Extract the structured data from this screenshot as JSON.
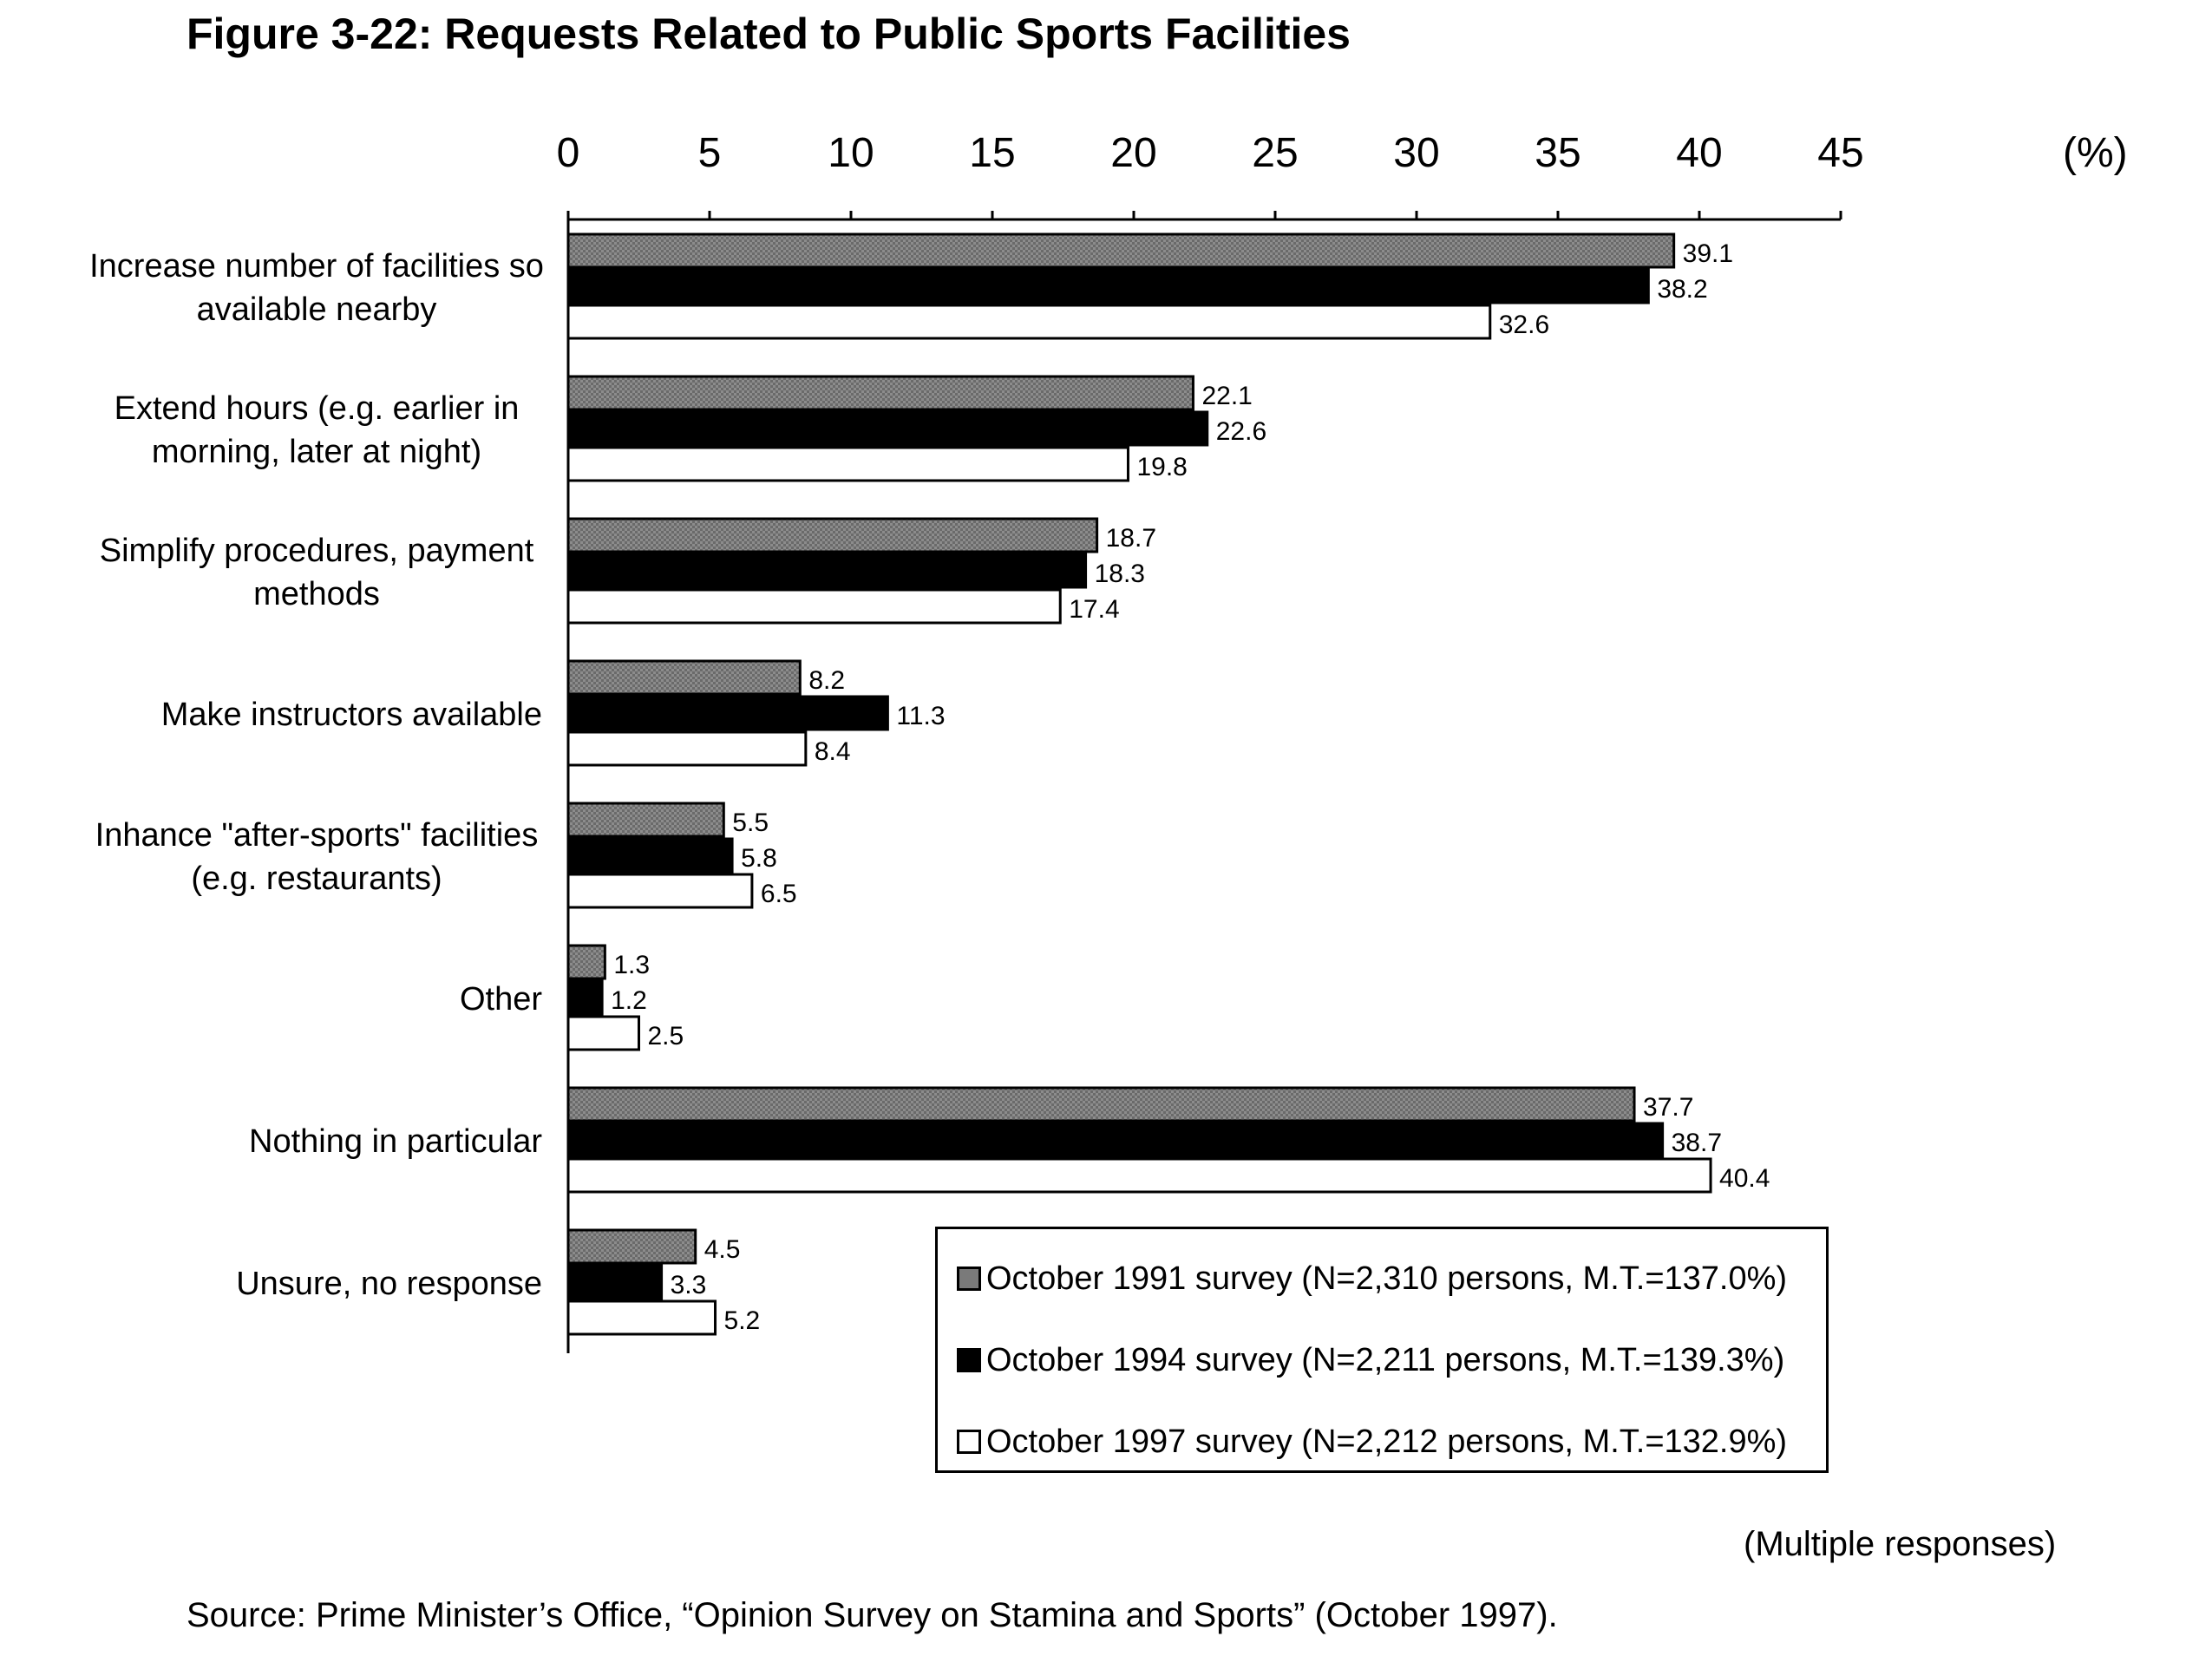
{
  "title": "Figure 3-22: Requests Related to Public Sports Facilities",
  "chart_data": {
    "type": "bar",
    "orientation": "horizontal",
    "x_unit": "(%)",
    "xlim": [
      0,
      45
    ],
    "x_ticks": [
      0,
      5,
      10,
      15,
      20,
      25,
      30,
      35,
      40,
      45
    ],
    "x_axis_position": "top",
    "grid": false,
    "categories": [
      [
        "Increase number of facilities so",
        "available nearby"
      ],
      [
        "Extend hours (e.g. earlier in",
        "morning, later at night)"
      ],
      [
        "Simplify procedures, payment",
        "methods"
      ],
      [
        "Make instructors available"
      ],
      [
        "Inhance \"after-sports\" facilities",
        "(e.g. restaurants)"
      ],
      [
        "Other"
      ],
      [
        "Nothing in particular"
      ],
      [
        "Unsure, no response"
      ]
    ],
    "series": [
      {
        "name": "October 1991 survey (N=2,310 persons, M.T.=137.0%)",
        "color": "#7a7a7a",
        "values": [
          39.1,
          22.1,
          18.7,
          8.2,
          5.5,
          1.3,
          37.7,
          4.5
        ]
      },
      {
        "name": "October 1994 survey (N=2,211 persons, M.T.=139.3%)",
        "color": "#000000",
        "values": [
          38.2,
          22.6,
          18.3,
          11.3,
          5.8,
          1.2,
          38.7,
          3.3
        ]
      },
      {
        "name": "October 1997 survey (N=2,212 persons, M.T.=132.9%)",
        "color": "#ffffff",
        "values": [
          32.6,
          19.8,
          17.4,
          8.4,
          6.5,
          2.5,
          40.4,
          5.2
        ]
      }
    ],
    "legend_position": "bottom-right"
  },
  "note": "(Multiple responses)",
  "source": "Source: Prime Minister’s Office, “Opinion Survey on Stamina and Sports” (October 1997)."
}
